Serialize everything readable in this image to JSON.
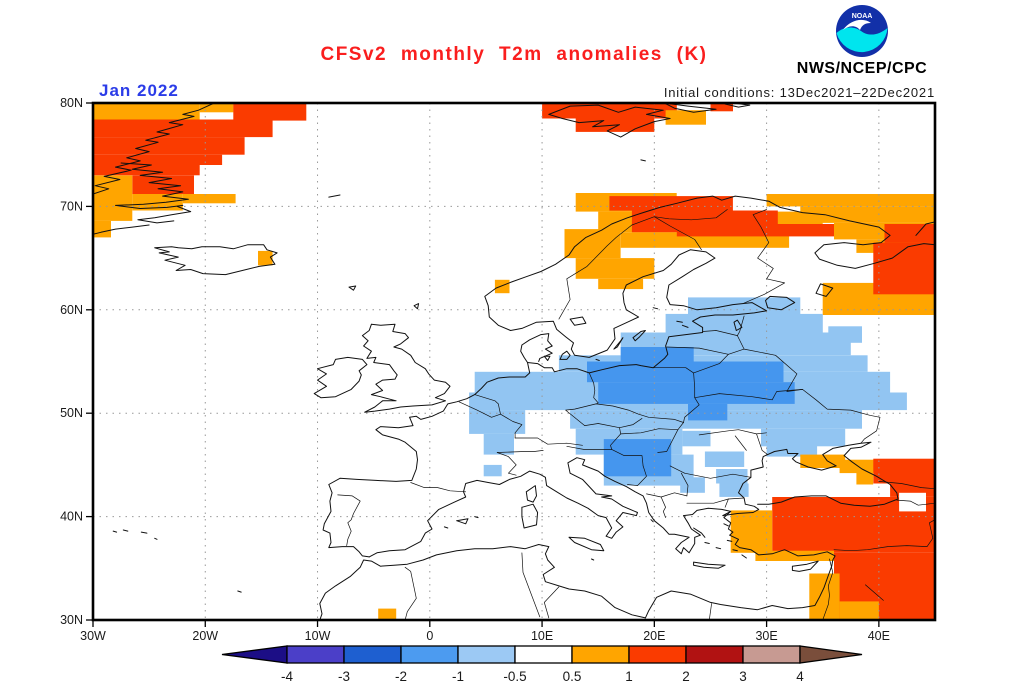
{
  "header": {
    "title": "CFSv2 monthly T2m anomalies (K)",
    "date_label": "Jan 2022",
    "init_conditions": "Initial conditions: 13Dec2021–22Dec2021",
    "agency": "NWS/NCEP/CPC",
    "logo_text": "NOAA"
  },
  "map": {
    "lat_tick_labels": [
      "80N",
      "70N",
      "60N",
      "50N",
      "40N",
      "30N"
    ],
    "lat_tick_values": [
      80,
      70,
      60,
      50,
      40,
      30
    ],
    "lon_tick_labels": [
      "30W",
      "20W",
      "10W",
      "0",
      "10E",
      "20E",
      "30E",
      "40E"
    ],
    "lon_tick_values": [
      -30,
      -20,
      -10,
      0,
      10,
      20,
      30,
      40
    ],
    "grid_lats": [
      70,
      60,
      50,
      40
    ],
    "grid_lons": [
      -20,
      -10,
      0,
      10,
      20,
      30,
      40
    ]
  },
  "colorbar": {
    "tick_labels": [
      "-4",
      "-3",
      "-2",
      "-1",
      "-0.5",
      "0.5",
      "1",
      "2",
      "3",
      "4"
    ],
    "segment_colors": [
      "#4b3fc8",
      "#1e5fd0",
      "#4c9bf0",
      "#9cc9f4",
      "#ffffff",
      "#ffa500",
      "#fa3b00",
      "#b11212",
      "#c79a92"
    ],
    "left_arrow_color": "#1c0e86",
    "right_arrow_color": "#7a4e3b"
  },
  "chart_data": {
    "type": "heatmap",
    "title": "CFSv2 monthly T2m anomalies (K)",
    "units": "K",
    "region": "Europe / North Atlantic",
    "lon_range": [
      -30,
      45
    ],
    "lat_range": [
      30,
      80
    ],
    "x_ticks": [
      "30W",
      "20W",
      "10W",
      "0",
      "10E",
      "20E",
      "30E",
      "40E"
    ],
    "y_ticks": [
      "80N",
      "70N",
      "60N",
      "50N",
      "40N",
      "30N"
    ],
    "scale_breaks": [
      -4,
      -3,
      -2,
      -1,
      -0.5,
      0.5,
      1,
      2,
      3,
      4
    ],
    "grid": true,
    "legend_position": "bottom",
    "palette": {
      "o": "#ffa500",
      "r": "#fa3b00",
      "lb": "#92c5f2",
      "mb": "#4596ee",
      "w": "#ffffff"
    },
    "palette_meaning": {
      "o": "+0.5 to +1 K anomaly",
      "r": "+1 to +2 K anomaly",
      "lb": "-1 to -0.5 K anomaly",
      "mb": "-2 to -1 K anomaly",
      "w": "neutral / masked"
    },
    "anomaly_cells": [
      [
        "o",
        -30,
        80,
        9.5,
        1.6
      ],
      [
        "o",
        -20.5,
        80,
        3,
        0.9
      ],
      [
        "r",
        -17.5,
        80,
        6.5,
        1.7
      ],
      [
        "r",
        -30,
        78.4,
        16,
        1.7
      ],
      [
        "r",
        -30,
        76.7,
        13.5,
        1.7
      ],
      [
        "r",
        -30,
        75,
        11.5,
        1
      ],
      [
        "r",
        -30,
        74,
        9.5,
        1
      ],
      [
        "r",
        -26.5,
        73,
        5.5,
        1.8
      ],
      [
        "o",
        -30,
        73,
        3.5,
        4.4
      ],
      [
        "o",
        -26.5,
        71.2,
        4.5,
        1.6
      ],
      [
        "o",
        -22,
        71.2,
        4.7,
        0.9
      ],
      [
        "o",
        -30,
        68.6,
        1.6,
        1.6
      ],
      [
        "o",
        -15.3,
        65.7,
        1.3,
        1.4
      ],
      [
        "o",
        5.8,
        62.9,
        1.3,
        1.3
      ],
      [
        "r",
        10,
        80,
        12,
        1.5
      ],
      [
        "r",
        13,
        78.5,
        7,
        1.3
      ],
      [
        "o",
        21,
        79.3,
        3.6,
        1.4
      ],
      [
        "r",
        25,
        80,
        2,
        0.8
      ],
      [
        "o",
        13,
        71.3,
        9,
        1.8
      ],
      [
        "o",
        15,
        69.5,
        20,
        2
      ],
      [
        "o",
        17,
        67.5,
        15,
        1.5
      ],
      [
        "o",
        12,
        67.8,
        5,
        2.8
      ],
      [
        "o",
        13,
        65,
        7,
        2
      ],
      [
        "o",
        15,
        63,
        4,
        1
      ],
      [
        "o",
        30,
        71.2,
        15,
        1.2
      ],
      [
        "o",
        33,
        70,
        12,
        1.6
      ],
      [
        "o",
        36,
        68.4,
        9,
        1.6
      ],
      [
        "o",
        38,
        66.8,
        7,
        1.3
      ],
      [
        "o",
        35,
        62.6,
        10,
        3.1
      ],
      [
        "r",
        16,
        71,
        11,
        1.4
      ],
      [
        "r",
        18,
        69.6,
        13,
        2.1
      ],
      [
        "r",
        22,
        68.3,
        14,
        1.2
      ],
      [
        "r",
        40.5,
        68.3,
        4.5,
        1.8
      ],
      [
        "r",
        39.5,
        66.5,
        5.5,
        5
      ],
      [
        "lb",
        23,
        61.2,
        10,
        2.2
      ],
      [
        "lb",
        21,
        59.6,
        14,
        1.8
      ],
      [
        "lb",
        35.5,
        58.4,
        3,
        1.6
      ],
      [
        "lb",
        17,
        57.8,
        20.5,
        2.2
      ],
      [
        "lb",
        11.5,
        55.6,
        27.5,
        1.6
      ],
      [
        "lb",
        4,
        54,
        37,
        2
      ],
      [
        "lb",
        3.5,
        52,
        39,
        1.7
      ],
      [
        "lb",
        3.5,
        50.3,
        5,
        2.3
      ],
      [
        "lb",
        4.8,
        48,
        2.7,
        2
      ],
      [
        "lb",
        4.8,
        45,
        1.6,
        1.1
      ],
      [
        "lb",
        12.5,
        50.3,
        26,
        1.8
      ],
      [
        "lb",
        13,
        48.5,
        9.5,
        2.5
      ],
      [
        "lb",
        22.5,
        48.3,
        2.5,
        1.5
      ],
      [
        "lb",
        29.5,
        48.5,
        7.5,
        1.7
      ],
      [
        "lb",
        30,
        47.3,
        4.5,
        1.5
      ],
      [
        "lb",
        15.5,
        46,
        8,
        3
      ],
      [
        "lb",
        24.5,
        46.3,
        3.5,
        1.5
      ],
      [
        "lb",
        25.5,
        44.6,
        2.8,
        1.4
      ],
      [
        "lb",
        22.3,
        43.8,
        2.2,
        1.5
      ],
      [
        "lb",
        25.8,
        43.2,
        2.6,
        1.3
      ],
      [
        "mb",
        17,
        56.4,
        6.5,
        1.4
      ],
      [
        "mb",
        14,
        55,
        17.5,
        2
      ],
      [
        "mb",
        15,
        53,
        17.5,
        2.1
      ],
      [
        "mb",
        23,
        50.9,
        3.5,
        1.6
      ],
      [
        "mb",
        15.5,
        47.5,
        6,
        3.6
      ],
      [
        "o",
        33,
        46,
        4,
        1.3
      ],
      [
        "o",
        36.5,
        45.5,
        3.5,
        1.3
      ],
      [
        "r",
        39.5,
        45.6,
        5.5,
        2.4
      ],
      [
        "o",
        38,
        44.3,
        1.5,
        1.2
      ],
      [
        "r",
        41,
        43.2,
        4,
        1.3
      ],
      [
        "r",
        30.5,
        41.9,
        14.5,
        5.4
      ],
      [
        "o",
        26.8,
        40.6,
        3.7,
        4.1
      ],
      [
        "o",
        29,
        36.7,
        7,
        1
      ],
      [
        "r",
        36,
        36.5,
        9,
        6.5
      ],
      [
        "o",
        33.8,
        34.5,
        2.7,
        4.5
      ],
      [
        "o",
        36.5,
        31.8,
        3.5,
        1.8
      ],
      [
        "o",
        -4.6,
        31.1,
        1.6,
        1.1
      ],
      [
        "w",
        41.8,
        42.3,
        2.4,
        1.8
      ]
    ]
  }
}
